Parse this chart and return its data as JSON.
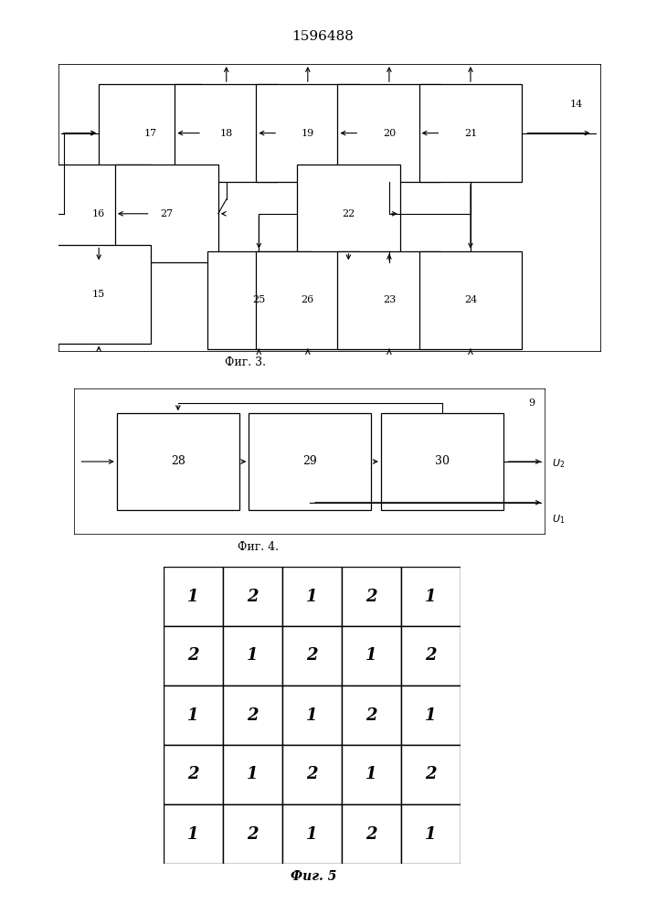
{
  "title": "1596488",
  "fig3_caption": "Фиг. 3.",
  "fig4_caption": "Фиг. 4.",
  "fig5_caption": "Фиг. 5",
  "fig5_grid": [
    [
      1,
      2,
      1,
      2,
      1
    ],
    [
      2,
      1,
      2,
      1,
      2
    ],
    [
      1,
      2,
      1,
      2,
      1
    ],
    [
      2,
      1,
      2,
      1,
      2
    ],
    [
      1,
      2,
      1,
      2,
      1
    ]
  ]
}
